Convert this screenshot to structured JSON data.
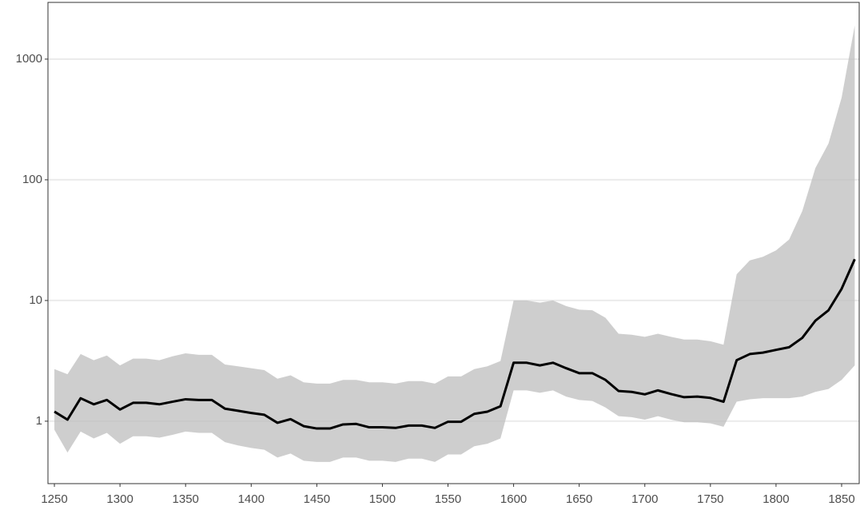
{
  "chart_data": {
    "type": "line",
    "x": [
      1250,
      1260,
      1270,
      1280,
      1290,
      1300,
      1310,
      1320,
      1330,
      1340,
      1350,
      1360,
      1370,
      1380,
      1390,
      1400,
      1410,
      1420,
      1430,
      1440,
      1450,
      1460,
      1470,
      1480,
      1490,
      1500,
      1510,
      1520,
      1530,
      1540,
      1550,
      1560,
      1570,
      1580,
      1590,
      1600,
      1610,
      1620,
      1630,
      1640,
      1650,
      1660,
      1670,
      1680,
      1690,
      1700,
      1710,
      1720,
      1730,
      1740,
      1750,
      1760,
      1770,
      1780,
      1790,
      1800,
      1810,
      1820,
      1830,
      1840,
      1850,
      1860
    ],
    "series": [
      {
        "color": "#000000",
        "band_color": "#bdbdbd",
        "values": [
          1.2,
          1.03,
          1.55,
          1.38,
          1.5,
          1.25,
          1.42,
          1.42,
          1.38,
          1.45,
          1.52,
          1.5,
          1.5,
          1.27,
          1.22,
          1.17,
          1.13,
          0.97,
          1.04,
          0.91,
          0.87,
          0.87,
          0.94,
          0.95,
          0.89,
          0.89,
          0.88,
          0.92,
          0.92,
          0.88,
          0.99,
          0.99,
          1.15,
          1.2,
          1.33,
          3.05,
          3.05,
          2.9,
          3.05,
          2.75,
          2.5,
          2.5,
          2.2,
          1.78,
          1.75,
          1.67,
          1.8,
          1.68,
          1.58,
          1.6,
          1.56,
          1.45,
          3.2,
          3.6,
          3.7,
          3.9,
          4.1,
          4.9,
          6.8,
          8.3,
          12.5,
          22
        ],
        "lower": [
          0.85,
          0.55,
          0.82,
          0.72,
          0.8,
          0.65,
          0.75,
          0.75,
          0.73,
          0.77,
          0.82,
          0.8,
          0.8,
          0.67,
          0.63,
          0.6,
          0.58,
          0.5,
          0.54,
          0.47,
          0.46,
          0.46,
          0.5,
          0.5,
          0.47,
          0.47,
          0.46,
          0.49,
          0.49,
          0.46,
          0.53,
          0.53,
          0.62,
          0.65,
          0.72,
          1.8,
          1.8,
          1.72,
          1.8,
          1.6,
          1.5,
          1.47,
          1.3,
          1.1,
          1.08,
          1.03,
          1.1,
          1.03,
          0.98,
          0.98,
          0.96,
          0.9,
          1.45,
          1.52,
          1.55,
          1.55,
          1.55,
          1.6,
          1.75,
          1.85,
          2.2,
          2.9
        ],
        "upper": [
          2.7,
          2.45,
          3.6,
          3.2,
          3.5,
          2.9,
          3.3,
          3.3,
          3.2,
          3.45,
          3.65,
          3.55,
          3.55,
          2.95,
          2.85,
          2.75,
          2.65,
          2.25,
          2.4,
          2.1,
          2.05,
          2.05,
          2.2,
          2.2,
          2.1,
          2.1,
          2.05,
          2.15,
          2.15,
          2.05,
          2.35,
          2.35,
          2.7,
          2.85,
          3.15,
          10,
          10,
          9.6,
          10,
          9,
          8.4,
          8.3,
          7.2,
          5.3,
          5.2,
          5.0,
          5.3,
          5.0,
          4.75,
          4.75,
          4.6,
          4.3,
          16.5,
          21.5,
          23,
          26,
          32,
          55,
          125,
          200,
          480,
          1900
        ]
      }
    ],
    "xlim": [
      1245.1,
      1863.4
    ],
    "ylim": [
      0.304,
      2950
    ],
    "xticks": [
      1250,
      1300,
      1350,
      1400,
      1450,
      1500,
      1550,
      1600,
      1650,
      1700,
      1750,
      1800,
      1850
    ],
    "yticks": [
      1,
      10,
      100,
      1000
    ],
    "log_y": true,
    "grid": true
  }
}
